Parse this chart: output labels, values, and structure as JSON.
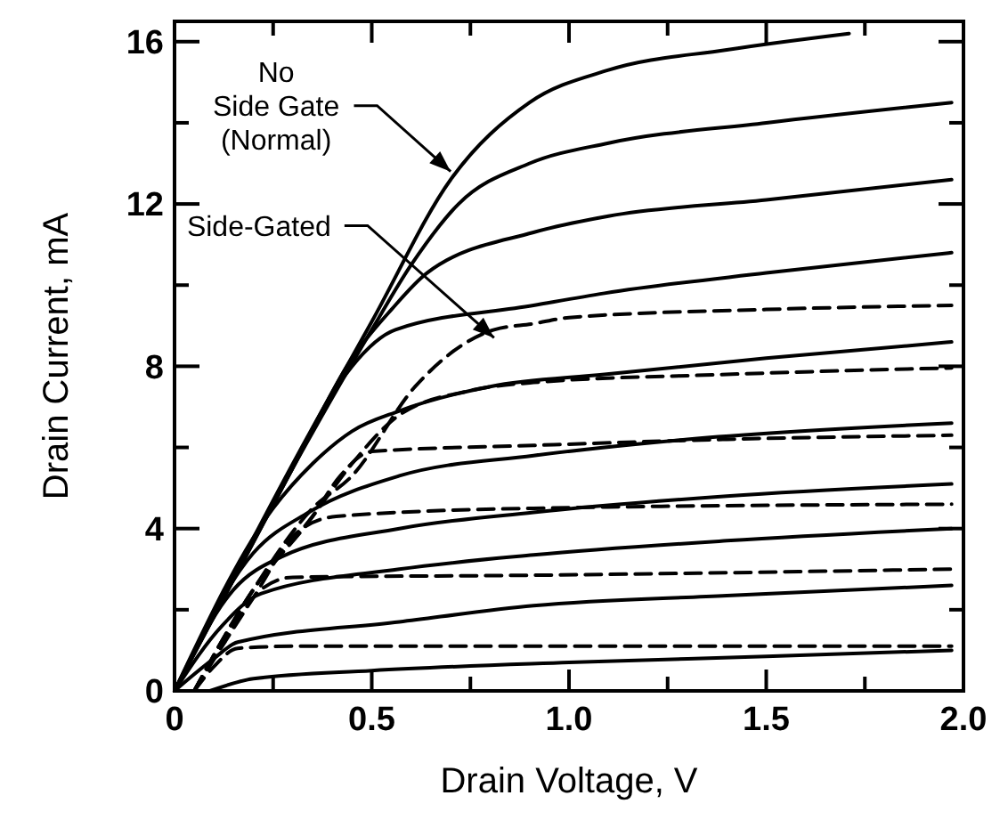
{
  "chart_data": {
    "type": "line",
    "xlabel": "Drain Voltage, V",
    "ylabel": "Drain Current, mA",
    "xlim": [
      0,
      2.0
    ],
    "ylim": [
      0,
      16.5
    ],
    "xticks": [
      0,
      {
        "value": 0.25,
        "label": null
      },
      0.5,
      {
        "value": 0.75,
        "label": null
      },
      {
        "value": 1.0,
        "label": "1.0"
      },
      {
        "value": 1.25,
        "label": null
      },
      1.5,
      {
        "value": 1.75,
        "label": null
      },
      {
        "value": 2.0,
        "label": "2.0"
      }
    ],
    "yticks": [
      0,
      {
        "value": 2,
        "label": null
      },
      4,
      {
        "value": 6,
        "label": null
      },
      8,
      {
        "value": 10,
        "label": null
      },
      12,
      {
        "value": 14,
        "label": null
      },
      16
    ],
    "grid": false,
    "series": [
      {
        "color": "#000000",
        "line_style": "solid",
        "x": [
          0,
          0.1,
          0.3,
          0.5,
          0.7,
          0.9,
          1.1,
          1.4,
          1.71
        ],
        "values": [
          0,
          1.9,
          5.6,
          9.1,
          12.6,
          14.5,
          15.3,
          15.8,
          16.2
        ]
      },
      {
        "color": "#000000",
        "line_style": "solid",
        "x": [
          0,
          0.3,
          0.5,
          0.6,
          0.72,
          0.9,
          1.1,
          1.5,
          1.97
        ],
        "values": [
          0,
          5.5,
          8.9,
          10.5,
          12.0,
          13.0,
          13.5,
          14.0,
          14.5
        ]
      },
      {
        "color": "#000000",
        "line_style": "solid",
        "x": [
          0,
          0.3,
          0.45,
          0.55,
          0.64,
          0.91,
          1.1,
          1.5,
          1.97
        ],
        "values": [
          0,
          5.5,
          8.2,
          9.4,
          10.3,
          11.3,
          11.7,
          12.1,
          12.6
        ]
      },
      {
        "color": "#000000",
        "line_style": "solid",
        "x": [
          0,
          0.3,
          0.38,
          0.45,
          0.56,
          0.91,
          1.09,
          1.5,
          1.97
        ],
        "values": [
          0,
          5.5,
          7.0,
          8.0,
          8.9,
          9.5,
          9.8,
          10.3,
          10.8
        ]
      },
      {
        "color": "#000000",
        "line_style": "solid",
        "x": [
          0,
          0.25,
          0.35,
          0.45,
          0.57,
          0.8,
          1.09,
          1.5,
          1.97
        ],
        "values": [
          0,
          4.5,
          5.6,
          6.4,
          6.9,
          7.5,
          7.8,
          8.2,
          8.6
        ]
      },
      {
        "color": "#000000",
        "line_style": "solid",
        "x": [
          0,
          0.2,
          0.34,
          0.57,
          0.91,
          1.3,
          1.97
        ],
        "values": [
          0,
          3.4,
          4.4,
          5.3,
          5.8,
          6.2,
          6.6
        ]
      },
      {
        "color": "#000000",
        "line_style": "solid",
        "x": [
          0,
          0.15,
          0.27,
          0.57,
          0.91,
          1.4,
          1.97
        ],
        "values": [
          0,
          2.5,
          3.3,
          4.0,
          4.4,
          4.8,
          5.1
        ]
      },
      {
        "color": "#000000",
        "line_style": "solid",
        "x": [
          0,
          0.12,
          0.22,
          0.57,
          0.91,
          1.4,
          1.97
        ],
        "values": [
          0,
          1.6,
          2.4,
          3.0,
          3.35,
          3.7,
          4.0
        ]
      },
      {
        "color": "#000000",
        "line_style": "solid",
        "x": [
          0,
          0.1,
          0.16,
          0.57,
          0.91,
          1.4,
          1.97
        ],
        "values": [
          0,
          0.8,
          1.2,
          1.7,
          2.1,
          2.35,
          2.6
        ]
      },
      {
        "color": "#000000",
        "line_style": "solid",
        "x": [
          0.09,
          0.2,
          0.5,
          1.0,
          1.5,
          1.97
        ],
        "values": [
          0,
          0.3,
          0.5,
          0.7,
          0.85,
          1.0
        ]
      },
      {
        "color": "#000000",
        "line_style": "dashed",
        "x": [
          0.05,
          0.2,
          0.35,
          0.45,
          0.61,
          0.81,
          0.91,
          1.0,
          1.5,
          1.97
        ],
        "values": [
          0,
          2.5,
          4.5,
          5.3,
          7.5,
          8.9,
          9.05,
          9.2,
          9.4,
          9.5
        ]
      },
      {
        "color": "#000000",
        "line_style": "dashed",
        "x": [
          0.05,
          0.2,
          0.35,
          0.45,
          0.57,
          0.75,
          0.91,
          1.4,
          1.97
        ],
        "values": [
          0,
          2.5,
          4.3,
          5.6,
          6.8,
          7.4,
          7.6,
          7.8,
          7.96
        ]
      },
      {
        "color": "#000000",
        "line_style": "dashed",
        "x": [
          0.05,
          0.2,
          0.35,
          0.42,
          0.5,
          0.91,
          1.4,
          1.97
        ],
        "values": [
          0,
          2.5,
          4.3,
          5.3,
          5.9,
          6.05,
          6.2,
          6.3
        ]
      },
      {
        "color": "#000000",
        "line_style": "dashed",
        "x": [
          0.05,
          0.2,
          0.31,
          0.41,
          0.91,
          1.97
        ],
        "values": [
          0,
          2.3,
          3.9,
          4.3,
          4.5,
          4.6
        ]
      },
      {
        "color": "#000000",
        "line_style": "dashed",
        "x": [
          0.05,
          0.15,
          0.22,
          0.3,
          0.91,
          1.97
        ],
        "values": [
          0,
          1.6,
          2.5,
          2.8,
          2.85,
          3.0
        ]
      },
      {
        "color": "#000000",
        "line_style": "dashed",
        "x": [
          0.05,
          0.1,
          0.16,
          0.3,
          1.97
        ],
        "values": [
          0,
          0.6,
          1.05,
          1.1,
          1.1
        ]
      }
    ],
    "annotations": [
      {
        "text": "No\nSide Gate\n(Normal)",
        "x": 0.7,
        "y": 12.8
      },
      {
        "text": "Side-Gated",
        "x": 0.81,
        "y": 8.7
      }
    ]
  }
}
